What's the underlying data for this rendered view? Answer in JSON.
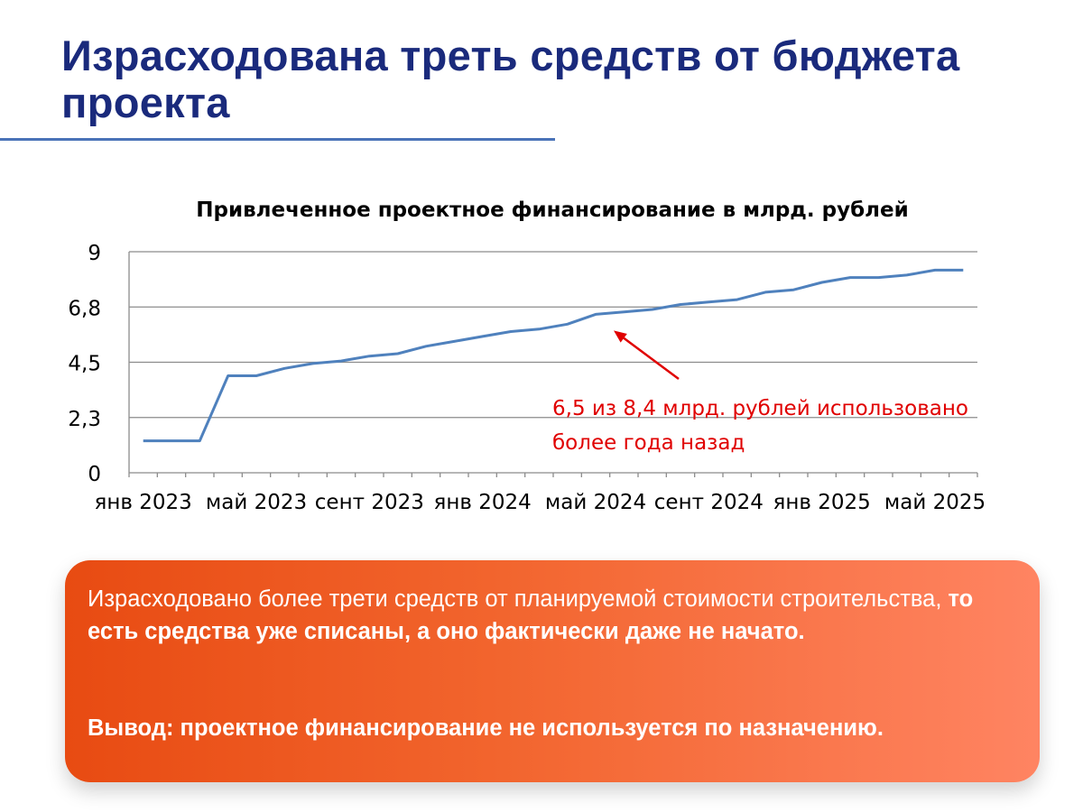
{
  "slide": {
    "title": "Израсходована треть средств от бюджета проекта"
  },
  "chart_data": {
    "type": "line",
    "title": "Привлеченное проектное финансирование в млрд. рублей",
    "xlabel": "",
    "ylabel": "",
    "ylim": [
      0,
      9
    ],
    "y_ticks": [
      "0",
      "2,3",
      "4,5",
      "6,8",
      "9"
    ],
    "y_tick_values": [
      0,
      2.25,
      4.5,
      6.75,
      9
    ],
    "x_tick_labels": [
      "янв 2023",
      "май 2023",
      "сент 2023",
      "янв 2024",
      "май 2024",
      "сент 2024",
      "янв 2025",
      "май 2025"
    ],
    "x": [
      "2023-01",
      "2023-02",
      "2023-03",
      "2023-04",
      "2023-05",
      "2023-06",
      "2023-07",
      "2023-08",
      "2023-09",
      "2023-10",
      "2023-11",
      "2023-12",
      "2024-01",
      "2024-02",
      "2024-03",
      "2024-04",
      "2024-05",
      "2024-06",
      "2024-07",
      "2024-08",
      "2024-09",
      "2024-10",
      "2024-11",
      "2024-12",
      "2025-01",
      "2025-02",
      "2025-03",
      "2025-04",
      "2025-05",
      "2025-06"
    ],
    "series": [
      {
        "name": "",
        "color": "#4f81bd",
        "values": [
          1.3,
          1.3,
          1.3,
          3.95,
          3.95,
          4.25,
          4.45,
          4.55,
          4.75,
          4.85,
          5.15,
          5.35,
          5.55,
          5.75,
          5.85,
          6.05,
          6.45,
          6.55,
          6.65,
          6.85,
          6.95,
          7.05,
          7.35,
          7.45,
          7.75,
          7.95,
          7.95,
          8.05,
          8.25,
          8.25
        ]
      }
    ],
    "grid": true,
    "legend": "none",
    "annotation": {
      "line1": "6,5 из 8,4 млрд. рублей использовано",
      "line2": "более года назад",
      "color": "#e00000",
      "arrow_target_x": "2024-05"
    }
  },
  "callout": {
    "text_regular": "Израсходовано более трети средств от планируемой стоимости строительства, ",
    "text_bold": "то есть средства уже списаны, а оно фактически даже не начато.",
    "conclusion": "Вывод: проектное финансирование не используется по назначению.",
    "gradient_start": "#e84b12",
    "gradient_end": "#ff8462"
  }
}
